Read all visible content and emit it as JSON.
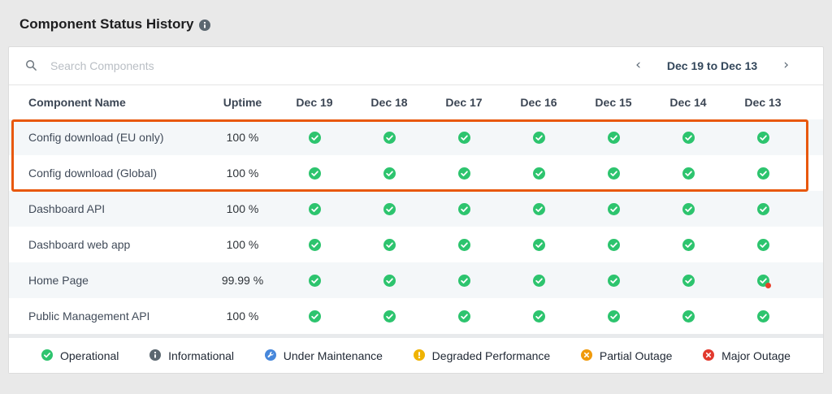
{
  "page": {
    "title": "Component Status History"
  },
  "icons": {
    "title_info": "info-circle",
    "search": "magnifier",
    "prev": "‹",
    "next": "›"
  },
  "toolbar": {
    "search_placeholder": "Search Components",
    "date_range": "Dec 19 to Dec 13"
  },
  "table": {
    "columns": [
      "Component Name",
      "Uptime",
      "Dec 19",
      "Dec 18",
      "Dec 17",
      "Dec 16",
      "Dec 15",
      "Dec 14",
      "Dec 13"
    ],
    "rows": [
      {
        "name": "Config download (EU only)",
        "uptime": "100 %",
        "highlighted": true,
        "statuses": [
          "operational",
          "operational",
          "operational",
          "operational",
          "operational",
          "operational",
          "operational"
        ]
      },
      {
        "name": "Config download (Global)",
        "uptime": "100 %",
        "highlighted": true,
        "statuses": [
          "operational",
          "operational",
          "operational",
          "operational",
          "operational",
          "operational",
          "operational"
        ]
      },
      {
        "name": "Dashboard API",
        "uptime": "100 %",
        "highlighted": false,
        "statuses": [
          "operational",
          "operational",
          "operational",
          "operational",
          "operational",
          "operational",
          "operational"
        ]
      },
      {
        "name": "Dashboard web app",
        "uptime": "100 %",
        "highlighted": false,
        "statuses": [
          "operational",
          "operational",
          "operational",
          "operational",
          "operational",
          "operational",
          "operational"
        ]
      },
      {
        "name": "Home Page",
        "uptime": "99.99 %",
        "highlighted": false,
        "statuses": [
          "operational",
          "operational",
          "operational",
          "operational",
          "operational",
          "operational",
          "operational-incident"
        ]
      },
      {
        "name": "Public Management API",
        "uptime": "100 %",
        "highlighted": false,
        "statuses": [
          "operational",
          "operational",
          "operational",
          "operational",
          "operational",
          "operational",
          "operational"
        ]
      }
    ]
  },
  "legend": [
    {
      "label": "Operational",
      "status": "operational"
    },
    {
      "label": "Informational",
      "status": "informational"
    },
    {
      "label": "Under Maintenance",
      "status": "maintenance"
    },
    {
      "label": "Degraded Performance",
      "status": "degraded"
    },
    {
      "label": "Partial Outage",
      "status": "partial"
    },
    {
      "label": "Major Outage",
      "status": "major"
    }
  ],
  "colors": {
    "operational": "#2dc46e",
    "informational": "#5b6770",
    "maintenance": "#4687db",
    "degraded": "#efb301",
    "partial": "#f09a0c",
    "major": "#e23a2e",
    "incident_dot": "#e8402a",
    "highlight_border": "#e8580c"
  }
}
